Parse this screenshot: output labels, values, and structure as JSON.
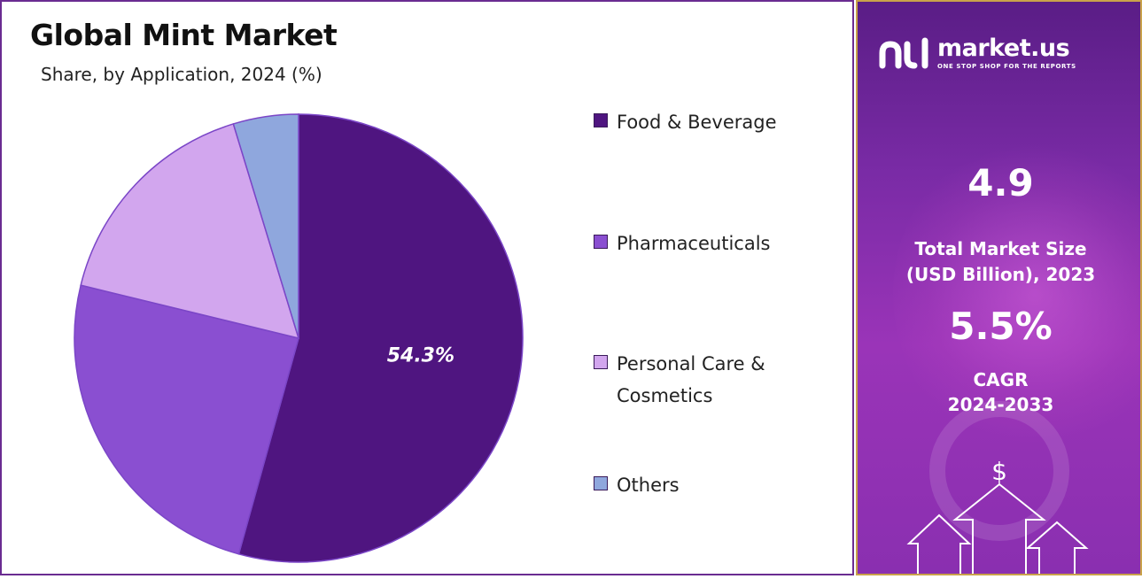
{
  "title": "Global Mint Market",
  "subtitle": "Share, by Application, 2024 (%)",
  "chart_data": {
    "type": "pie",
    "title": "Global Mint Market",
    "subtitle": "Share, by Application, 2024 (%)",
    "categories": [
      "Food & Beverage",
      "Pharmaceuticals",
      "Personal Care & Cosmetics",
      "Others"
    ],
    "values": [
      54.3,
      24.5,
      16.5,
      4.7
    ],
    "colors": [
      "#4f1580",
      "#8a4fd1",
      "#d2a6ee",
      "#8fa7dd"
    ],
    "data_labels": [
      "54.3%",
      "",
      "",
      ""
    ],
    "legend_position": "right"
  },
  "legend": {
    "items": [
      {
        "label": "Food & Beverage",
        "color": "#4f1580"
      },
      {
        "label": "Pharmaceuticals",
        "color": "#8a4fd1"
      },
      {
        "label": "Personal Care &",
        "label2": "Cosmetics",
        "color": "#d2a6ee"
      },
      {
        "label": "Others",
        "color": "#8fa7dd"
      }
    ]
  },
  "brand": {
    "name": "market.us",
    "tagline": "ONE STOP SHOP FOR THE REPORTS",
    "logo_icon": "market-us-logo-icon"
  },
  "stats": {
    "market_size_value": "4.9",
    "market_size_label_1": "Total Market Size",
    "market_size_label_2": "(USD Billion), 2023",
    "cagr_value": "5.5%",
    "cagr_label_1": "CAGR",
    "cagr_label_2": "2024-2033"
  },
  "decorations": {
    "dollar_icon": "$",
    "arrow_icon": "up-arrow-icon"
  }
}
